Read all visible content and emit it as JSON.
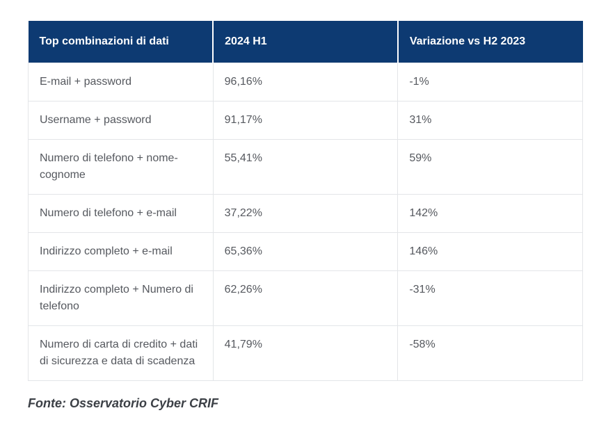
{
  "chart_data": {
    "type": "table",
    "columns": [
      "Top combinazioni di dati",
      "2024 H1",
      "Variazione vs H2 2023"
    ],
    "rows": [
      [
        "E-mail + password",
        "96,16%",
        "-1%"
      ],
      [
        "Username + password",
        "91,17%",
        "31%"
      ],
      [
        "Numero di telefono + nome-cognome",
        "55,41%",
        "59%"
      ],
      [
        "Numero di telefono + e-mail",
        "37,22%",
        "142%"
      ],
      [
        "Indirizzo completo + e-mail",
        "65,36%",
        "146%"
      ],
      [
        "Indirizzo completo + Numero di telefono",
        "62,26%",
        "-31%"
      ],
      [
        "Numero di carta di credito + dati di sicurezza e data di scadenza",
        "41,79%",
        "-58%"
      ]
    ],
    "source": "Fonte: Osservatorio Cyber CRIF"
  },
  "footer": {
    "source": "Fonte: Osservatorio Cyber CRIF"
  },
  "colors": {
    "header_bg": "#0d3a72",
    "header_text": "#ffffff",
    "body_text": "#55585e",
    "border": "#e3e5e8",
    "footer_text": "#3c4046"
  }
}
